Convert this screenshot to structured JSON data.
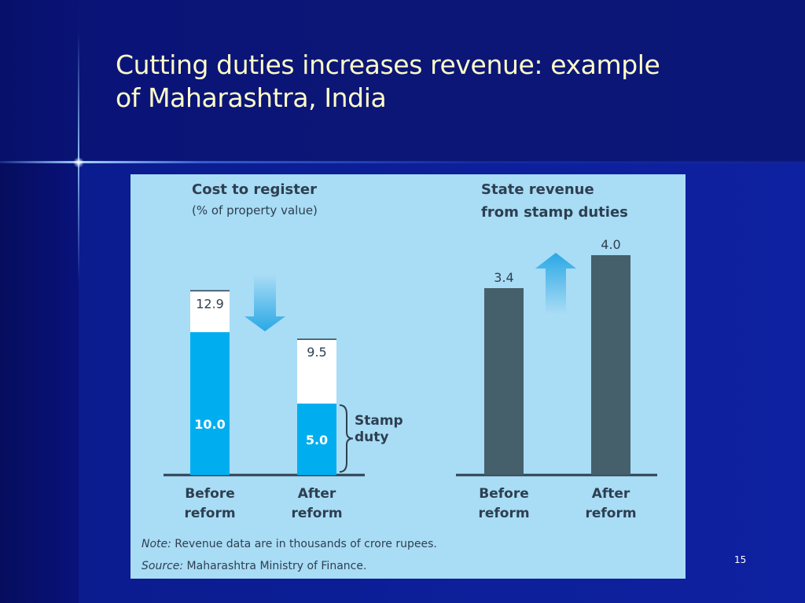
{
  "slide": {
    "title_line1": "Cutting duties increases revenue: example",
    "title_line2": "of Maharashtra, India",
    "page_number": "15"
  },
  "colors": {
    "stamp_duty": "#00aeef",
    "other_cost": "#ffffff",
    "revenue_bar": "#455f6b",
    "panel_bg": "#a9dcf5",
    "title_text": "#fffbc8"
  },
  "chart_data": [
    {
      "type": "bar",
      "title": "Cost to register",
      "subtitle": "(% of property value)",
      "categories": [
        "Before reform",
        "After reform"
      ],
      "category_lines": [
        [
          "Before",
          "reform"
        ],
        [
          "After",
          "reform"
        ]
      ],
      "series": [
        {
          "name": "Stamp duty",
          "values": [
            10.0,
            5.0
          ],
          "labels": [
            "10.0",
            "5.0"
          ]
        },
        {
          "values": [
            2.9,
            4.5
          ]
        }
      ],
      "totals": [
        12.9,
        9.5
      ],
      "total_labels": [
        "12.9",
        "9.5"
      ],
      "bracket_label_lines": [
        "Stamp",
        "duty"
      ],
      "stacked": true,
      "ylim": [
        0,
        13
      ]
    },
    {
      "type": "bar",
      "title_lines": [
        "State revenue",
        "from stamp duties"
      ],
      "categories": [
        "Before reform",
        "After reform"
      ],
      "category_lines": [
        [
          "Before",
          "reform"
        ],
        [
          "After",
          "reform"
        ]
      ],
      "values": [
        3.4,
        4.0
      ],
      "labels": [
        "3.4",
        "4.0"
      ],
      "ylim": [
        0,
        4.1
      ]
    }
  ],
  "notes": {
    "note_prefix": "Note:",
    "note_text": " Revenue data are in thousands of crore rupees.",
    "source_prefix": "Source:",
    "source_text": " Maharashtra Ministry of Finance."
  }
}
